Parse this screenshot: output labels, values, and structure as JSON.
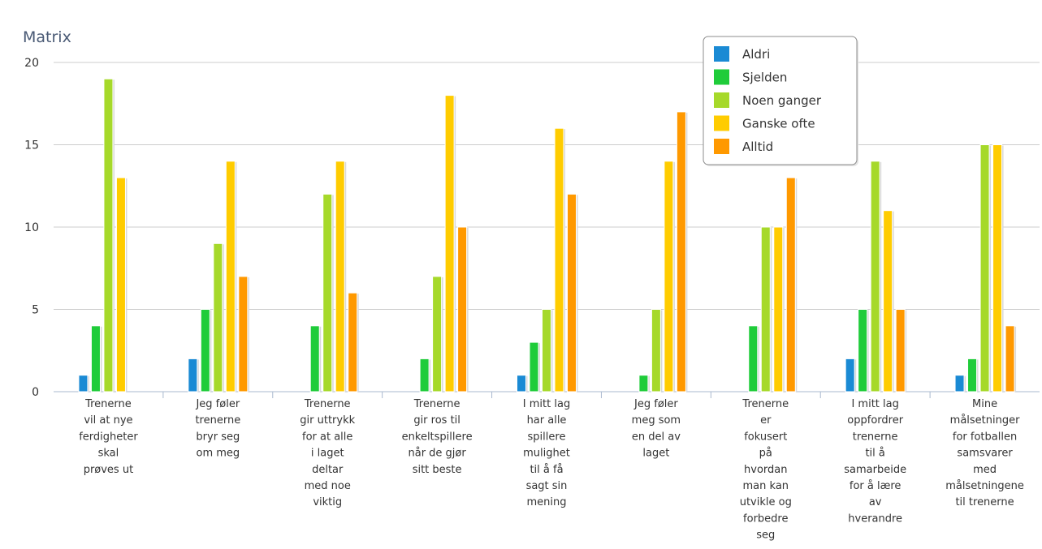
{
  "chart_data": {
    "type": "bar",
    "title": "Matrix",
    "ylim": [
      0,
      20
    ],
    "yticks": [
      "0",
      "5",
      "10",
      "15",
      "20"
    ],
    "grid": true,
    "legend_position": "top-right",
    "categories": [
      [
        "Trenerne",
        "vil at nye",
        "ferdigheter",
        "skal",
        "prøves ut"
      ],
      [
        "Jeg føler",
        "trenerne",
        "bryr seg",
        "om meg"
      ],
      [
        "Trenerne",
        "gir uttrykk",
        "for at alle",
        "i laget",
        "deltar",
        "med noe",
        "viktig"
      ],
      [
        "Trenerne",
        "gir ros til",
        "enkeltspillere",
        "når de gjør",
        "sitt beste"
      ],
      [
        "I mitt lag",
        "har alle",
        "spillere",
        "mulighet",
        "til å få",
        "sagt sin",
        "mening"
      ],
      [
        "Jeg føler",
        "meg som",
        "en del av",
        "laget"
      ],
      [
        "Trenerne",
        "er",
        "fokusert",
        "på",
        "hvordan",
        "man kan",
        "utvikle og",
        "forbedre",
        "seg"
      ],
      [
        "I mitt lag",
        "oppfordrer",
        "trenerne",
        "til å",
        "samarbeide",
        "for å lære",
        "av",
        "hverandre"
      ],
      [
        "Mine",
        "målsetninger",
        "for fotballen",
        "samsvarer",
        "med",
        "målsetningene",
        "til trenerne"
      ]
    ],
    "series": [
      {
        "name": "Aldri",
        "color": "#1a8ad4",
        "values": [
          1,
          2,
          0,
          0,
          1,
          0,
          0,
          2,
          1
        ]
      },
      {
        "name": "Sjelden",
        "color": "#1fcc3a",
        "values": [
          4,
          5,
          4,
          2,
          3,
          1,
          4,
          5,
          2
        ]
      },
      {
        "name": "Noen ganger",
        "color": "#a6d92a",
        "values": [
          19,
          9,
          12,
          7,
          5,
          5,
          10,
          14,
          15
        ]
      },
      {
        "name": "Ganske ofte",
        "color": "#ffcc00",
        "values": [
          13,
          14,
          14,
          18,
          16,
          14,
          10,
          11,
          15
        ]
      },
      {
        "name": "Alltid",
        "color": "#ff9900",
        "values": [
          0,
          7,
          6,
          10,
          12,
          17,
          13,
          5,
          4
        ]
      }
    ]
  }
}
